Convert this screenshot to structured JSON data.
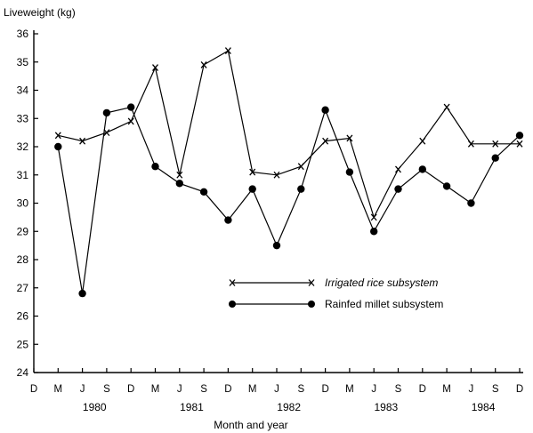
{
  "chart_data": {
    "type": "line",
    "ylabel": "Liveweight (kg)",
    "xlabel": "Month and year",
    "ylim": [
      24,
      36
    ],
    "yticks": [
      24,
      25,
      26,
      27,
      28,
      29,
      30,
      31,
      32,
      33,
      34,
      35,
      36
    ],
    "month_ticks": [
      "D",
      "M",
      "J",
      "S",
      "D",
      "M",
      "J",
      "S",
      "D",
      "M",
      "J",
      "S",
      "D",
      "M",
      "J",
      "S",
      "D",
      "M",
      "J",
      "S",
      "D"
    ],
    "year_labels": [
      {
        "label": "1980",
        "center": 2.5
      },
      {
        "label": "1981",
        "center": 6.5
      },
      {
        "label": "1982",
        "center": 10.5
      },
      {
        "label": "1983",
        "center": 14.5
      },
      {
        "label": "1984",
        "center": 18.5
      }
    ],
    "legend_position": "center-right",
    "series": [
      {
        "name": "Irrigated rice subsystem",
        "marker": "x",
        "points": [
          [
            1,
            32.4
          ],
          [
            2,
            32.2
          ],
          [
            3,
            32.5
          ],
          [
            4,
            32.9
          ],
          [
            5,
            34.8
          ],
          [
            6,
            31.0
          ],
          [
            7,
            34.9
          ],
          [
            8,
            35.4
          ],
          [
            9,
            31.1
          ],
          [
            10,
            31.0
          ],
          [
            11,
            31.3
          ],
          [
            12,
            32.2
          ],
          [
            13,
            32.3
          ],
          [
            14,
            29.5
          ],
          [
            15,
            31.2
          ],
          [
            16,
            32.2
          ],
          [
            17,
            33.4
          ],
          [
            18,
            32.1
          ],
          [
            19,
            32.1
          ],
          [
            20,
            32.1
          ]
        ]
      },
      {
        "name": "Rainfed millet subsystem",
        "marker": "dot",
        "points": [
          [
            1,
            32.0
          ],
          [
            2,
            26.8
          ],
          [
            3,
            33.2
          ],
          [
            4,
            33.4
          ],
          [
            5,
            31.3
          ],
          [
            6,
            30.7
          ],
          [
            7,
            30.4
          ],
          [
            8,
            29.4
          ],
          [
            9,
            30.5
          ],
          [
            10,
            28.5
          ],
          [
            11,
            30.5
          ],
          [
            12,
            33.3
          ],
          [
            13,
            31.1
          ],
          [
            14,
            29.0
          ],
          [
            15,
            30.5
          ],
          [
            16,
            31.2
          ],
          [
            17,
            30.6
          ],
          [
            18,
            30.0
          ],
          [
            19,
            31.6
          ],
          [
            20,
            32.4
          ]
        ]
      }
    ]
  }
}
